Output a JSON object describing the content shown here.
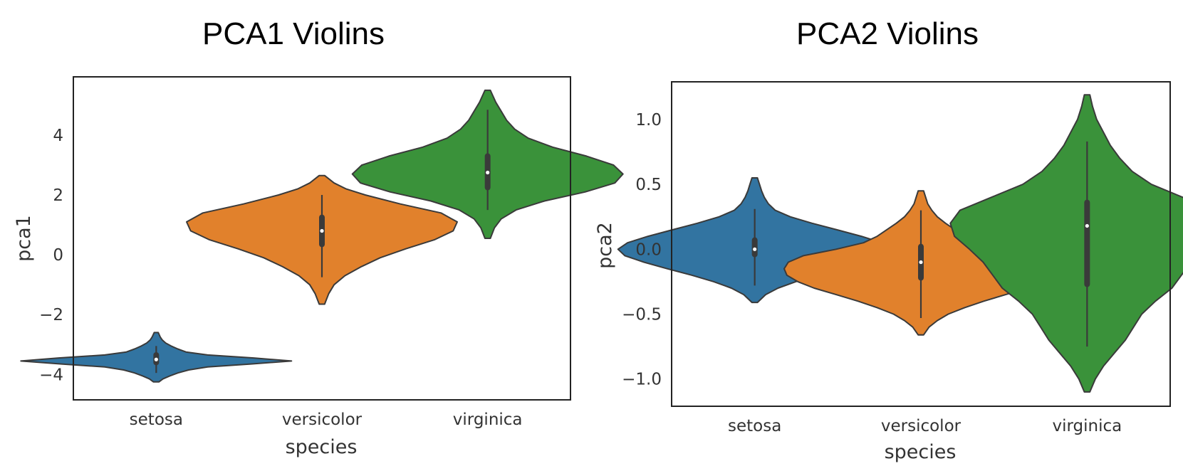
{
  "chart_data": [
    {
      "type": "violin",
      "title": "PCA1 Violins",
      "xlabel": "species",
      "ylabel": "pca1",
      "ylim": [
        -4.85,
        5.95
      ],
      "yticks": [
        4,
        2,
        0,
        -2,
        -4
      ],
      "ytick_labels": [
        "4",
        "2",
        "0",
        "−2",
        "−4"
      ],
      "categories": [
        "setosa",
        "versicolor",
        "virginica"
      ],
      "violins": [
        {
          "name": "setosa",
          "color": "#3274a1",
          "min": -4.25,
          "q1": -3.6,
          "median": -3.5,
          "q3": -3.35,
          "max": -2.6,
          "whisker_low": -3.95,
          "whisker_high": -3.05,
          "density": [
            [
              -4.25,
              0.02
            ],
            [
              -4.15,
              0.05
            ],
            [
              -4.05,
              0.1
            ],
            [
              -3.95,
              0.16
            ],
            [
              -3.85,
              0.24
            ],
            [
              -3.75,
              0.38
            ],
            [
              -3.65,
              0.7
            ],
            [
              -3.55,
              1.0
            ],
            [
              -3.45,
              0.72
            ],
            [
              -3.35,
              0.38
            ],
            [
              -3.25,
              0.22
            ],
            [
              -3.15,
              0.16
            ],
            [
              -3.05,
              0.11
            ],
            [
              -2.95,
              0.07
            ],
            [
              -2.85,
              0.045
            ],
            [
              -2.75,
              0.03
            ],
            [
              -2.6,
              0.015
            ]
          ]
        },
        {
          "name": "versicolor",
          "color": "#e1812c",
          "min": -1.65,
          "q1": 0.35,
          "median": 0.8,
          "q3": 1.25,
          "max": 2.65,
          "whisker_low": -0.75,
          "whisker_high": 2.0,
          "density": [
            [
              -1.65,
              0.02
            ],
            [
              -1.3,
              0.05
            ],
            [
              -1.0,
              0.09
            ],
            [
              -0.7,
              0.17
            ],
            [
              -0.4,
              0.29
            ],
            [
              -0.1,
              0.43
            ],
            [
              0.2,
              0.62
            ],
            [
              0.5,
              0.83
            ],
            [
              0.8,
              0.97
            ],
            [
              1.1,
              1.0
            ],
            [
              1.4,
              0.88
            ],
            [
              1.7,
              0.58
            ],
            [
              2.0,
              0.32
            ],
            [
              2.2,
              0.18
            ],
            [
              2.4,
              0.09
            ],
            [
              2.65,
              0.02
            ]
          ]
        },
        {
          "name": "virginica",
          "color": "#3a923a",
          "min": 0.55,
          "q1": 2.25,
          "median": 2.75,
          "q3": 3.3,
          "max": 5.5,
          "whisker_low": 1.5,
          "whisker_high": 4.85,
          "density": [
            [
              0.55,
              0.02
            ],
            [
              0.9,
              0.05
            ],
            [
              1.2,
              0.1
            ],
            [
              1.5,
              0.21
            ],
            [
              1.8,
              0.42
            ],
            [
              2.1,
              0.72
            ],
            [
              2.4,
              0.94
            ],
            [
              2.7,
              1.0
            ],
            [
              3.0,
              0.93
            ],
            [
              3.3,
              0.73
            ],
            [
              3.6,
              0.48
            ],
            [
              3.9,
              0.3
            ],
            [
              4.2,
              0.2
            ],
            [
              4.5,
              0.14
            ],
            [
              4.8,
              0.1
            ],
            [
              5.1,
              0.06
            ],
            [
              5.5,
              0.02
            ]
          ]
        }
      ],
      "grid": false,
      "legend": "none"
    },
    {
      "type": "violin",
      "title": "PCA2 Violins",
      "xlabel": "species",
      "ylabel": "pca2",
      "ylim": [
        -1.21,
        1.29
      ],
      "yticks": [
        1.0,
        0.5,
        0.0,
        -0.5,
        -1.0
      ],
      "ytick_labels": [
        "1.0",
        "0.5",
        "0.0",
        "−0.5",
        "−1.0"
      ],
      "categories": [
        "setosa",
        "versicolor",
        "virginica"
      ],
      "violins": [
        {
          "name": "setosa",
          "color": "#3274a1",
          "min": -0.41,
          "q1": -0.04,
          "median": 0.0,
          "q3": 0.07,
          "max": 0.55,
          "whisker_low": -0.28,
          "whisker_high": 0.31,
          "density": [
            [
              -0.41,
              0.02
            ],
            [
              -0.35,
              0.08
            ],
            [
              -0.3,
              0.17
            ],
            [
              -0.25,
              0.3
            ],
            [
              -0.2,
              0.46
            ],
            [
              -0.15,
              0.64
            ],
            [
              -0.1,
              0.81
            ],
            [
              -0.05,
              0.95
            ],
            [
              0.0,
              1.0
            ],
            [
              0.05,
              0.93
            ],
            [
              0.1,
              0.78
            ],
            [
              0.15,
              0.6
            ],
            [
              0.2,
              0.42
            ],
            [
              0.25,
              0.26
            ],
            [
              0.3,
              0.15
            ],
            [
              0.35,
              0.1
            ],
            [
              0.4,
              0.07
            ],
            [
              0.45,
              0.05
            ],
            [
              0.5,
              0.035
            ],
            [
              0.55,
              0.02
            ]
          ]
        },
        {
          "name": "versicolor",
          "color": "#e1812c",
          "min": -0.66,
          "q1": -0.22,
          "median": -0.1,
          "q3": 0.02,
          "max": 0.45,
          "whisker_low": -0.53,
          "whisker_high": 0.3,
          "density": [
            [
              -0.66,
              0.02
            ],
            [
              -0.6,
              0.06
            ],
            [
              -0.55,
              0.12
            ],
            [
              -0.5,
              0.2
            ],
            [
              -0.45,
              0.32
            ],
            [
              -0.4,
              0.46
            ],
            [
              -0.35,
              0.62
            ],
            [
              -0.3,
              0.78
            ],
            [
              -0.25,
              0.9
            ],
            [
              -0.2,
              0.98
            ],
            [
              -0.15,
              1.0
            ],
            [
              -0.1,
              0.97
            ],
            [
              -0.05,
              0.86
            ],
            [
              0.0,
              0.62
            ],
            [
              0.05,
              0.42
            ],
            [
              0.1,
              0.32
            ],
            [
              0.15,
              0.25
            ],
            [
              0.2,
              0.18
            ],
            [
              0.25,
              0.12
            ],
            [
              0.3,
              0.08
            ],
            [
              0.35,
              0.05
            ],
            [
              0.4,
              0.035
            ],
            [
              0.45,
              0.02
            ]
          ]
        },
        {
          "name": "virginica",
          "color": "#3a923a",
          "min": -1.1,
          "q1": -0.27,
          "median": 0.18,
          "q3": 0.36,
          "max": 1.19,
          "whisker_low": -0.75,
          "whisker_high": 0.83,
          "density": [
            [
              -1.1,
              0.02
            ],
            [
              -1.0,
              0.06
            ],
            [
              -0.9,
              0.12
            ],
            [
              -0.8,
              0.2
            ],
            [
              -0.7,
              0.28
            ],
            [
              -0.6,
              0.34
            ],
            [
              -0.5,
              0.4
            ],
            [
              -0.4,
              0.5
            ],
            [
              -0.3,
              0.62
            ],
            [
              -0.2,
              0.69
            ],
            [
              -0.1,
              0.76
            ],
            [
              0.0,
              0.86
            ],
            [
              0.1,
              0.97
            ],
            [
              0.2,
              1.0
            ],
            [
              0.3,
              0.93
            ],
            [
              0.4,
              0.7
            ],
            [
              0.5,
              0.47
            ],
            [
              0.6,
              0.33
            ],
            [
              0.7,
              0.24
            ],
            [
              0.8,
              0.17
            ],
            [
              0.9,
              0.12
            ],
            [
              1.0,
              0.07
            ],
            [
              1.1,
              0.04
            ],
            [
              1.19,
              0.02
            ]
          ]
        }
      ],
      "grid": false,
      "legend": "none"
    }
  ]
}
